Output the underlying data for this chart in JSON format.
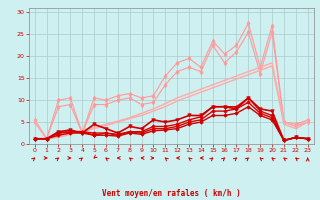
{
  "bg_color": "#cff0f0",
  "grid_color": "#aacccc",
  "xlabel": "Vent moyen/en rafales ( km/h )",
  "x_ticks": [
    0,
    1,
    2,
    3,
    4,
    5,
    6,
    7,
    8,
    9,
    10,
    11,
    12,
    13,
    14,
    15,
    16,
    17,
    18,
    19,
    20,
    21,
    22,
    23
  ],
  "ylim": [
    0,
    31
  ],
  "y_ticks": [
    0,
    5,
    10,
    15,
    20,
    25,
    30
  ],
  "series": [
    {
      "color": "#ff9999",
      "lw": 0.8,
      "marker": "d",
      "ms": 2.5,
      "y": [
        5.5,
        1.2,
        10.0,
        10.5,
        2.5,
        10.5,
        10.0,
        11.0,
        11.5,
        10.5,
        11.0,
        15.5,
        18.5,
        19.5,
        17.5,
        23.5,
        20.5,
        22.5,
        27.5,
        17.5,
        27.0,
        5.0,
        4.5,
        5.5
      ]
    },
    {
      "color": "#ff9999",
      "lw": 0.8,
      "marker": "d",
      "ms": 2.5,
      "y": [
        5.0,
        1.2,
        8.5,
        9.0,
        2.5,
        9.0,
        9.0,
        10.0,
        10.5,
        9.0,
        9.5,
        13.5,
        16.5,
        17.5,
        16.5,
        22.5,
        18.5,
        21.0,
        25.5,
        16.0,
        25.5,
        5.0,
        4.0,
        5.0
      ]
    },
    {
      "color": "#ffaaaa",
      "lw": 1.0,
      "marker": null,
      "ms": 0,
      "y": [
        5.5,
        1.2,
        1.8,
        2.5,
        3.2,
        3.8,
        4.5,
        5.2,
        6.0,
        7.0,
        8.0,
        9.2,
        10.5,
        11.5,
        12.5,
        13.5,
        14.5,
        15.5,
        16.5,
        17.5,
        18.5,
        5.0,
        4.0,
        5.5
      ]
    },
    {
      "color": "#ffaaaa",
      "lw": 1.0,
      "marker": null,
      "ms": 0,
      "y": [
        5.0,
        1.2,
        1.5,
        2.2,
        2.8,
        3.5,
        4.2,
        5.0,
        5.8,
        6.5,
        7.5,
        8.5,
        9.8,
        10.8,
        11.8,
        12.8,
        13.8,
        14.8,
        15.8,
        16.8,
        17.8,
        4.5,
        3.5,
        5.0
      ]
    },
    {
      "color": "#dd0000",
      "lw": 1.0,
      "marker": "D",
      "ms": 1.8,
      "y": [
        1.2,
        1.2,
        2.5,
        2.8,
        2.8,
        2.5,
        2.5,
        2.2,
        2.8,
        2.8,
        4.0,
        4.0,
        4.5,
        5.5,
        6.2,
        8.5,
        8.5,
        8.5,
        10.5,
        7.5,
        6.5,
        0.8,
        1.5,
        1.2
      ]
    },
    {
      "color": "#dd0000",
      "lw": 1.0,
      "marker": "D",
      "ms": 1.8,
      "y": [
        1.2,
        1.2,
        2.5,
        2.8,
        2.8,
        2.0,
        2.5,
        2.0,
        2.8,
        2.5,
        3.5,
        3.5,
        4.0,
        5.0,
        5.5,
        7.5,
        7.5,
        8.0,
        9.5,
        7.0,
        6.0,
        0.8,
        1.5,
        1.2
      ]
    },
    {
      "color": "#cc0000",
      "lw": 1.0,
      "marker": "D",
      "ms": 1.8,
      "y": [
        1.2,
        1.2,
        2.0,
        2.5,
        2.5,
        2.0,
        2.0,
        1.8,
        2.5,
        2.2,
        3.0,
        3.2,
        3.5,
        4.5,
        5.0,
        6.5,
        6.5,
        7.0,
        8.5,
        6.5,
        5.5,
        0.8,
        1.5,
        1.2
      ]
    },
    {
      "color": "#cc0000",
      "lw": 1.2,
      "marker": "v",
      "ms": 2.5,
      "y": [
        1.2,
        1.2,
        2.8,
        3.2,
        2.5,
        4.5,
        3.5,
        2.5,
        4.0,
        3.5,
        5.5,
        5.0,
        5.5,
        6.5,
        6.5,
        8.5,
        8.5,
        8.0,
        10.5,
        8.0,
        7.5,
        0.8,
        1.5,
        1.2
      ]
    }
  ],
  "arrows": {
    "x": [
      0,
      1,
      2,
      3,
      4,
      5,
      6,
      7,
      8,
      9,
      10,
      11,
      12,
      13,
      14,
      15,
      16,
      17,
      18,
      19,
      20,
      21,
      22,
      23
    ],
    "angles_deg": [
      45,
      90,
      45,
      90,
      45,
      225,
      315,
      270,
      315,
      270,
      90,
      315,
      270,
      315,
      270,
      45,
      45,
      45,
      45,
      315,
      315,
      315,
      315,
      0
    ]
  }
}
